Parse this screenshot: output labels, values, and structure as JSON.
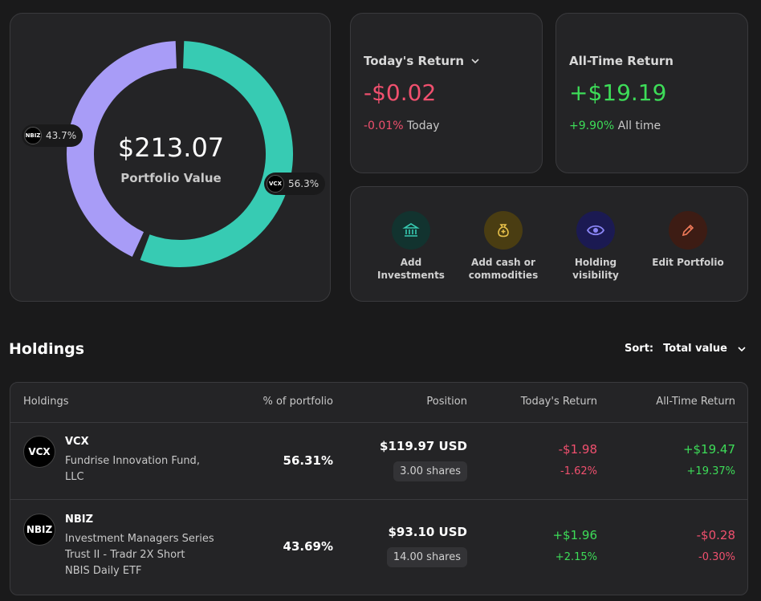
{
  "portfolio": {
    "value": "$213.07",
    "label": "Portfolio Value",
    "segments": [
      {
        "ticker": "VCX",
        "percent_label": "56.3%",
        "fraction": 0.563,
        "color": "#37cbb3"
      },
      {
        "ticker": "NBIZ",
        "percent_label": "43.7%",
        "fraction": 0.437,
        "color": "#a89cf7"
      }
    ]
  },
  "todays_return": {
    "title": "Today's Return",
    "value": "-$0.02",
    "pct": "-0.01%",
    "suffix": "Today"
  },
  "all_time_return": {
    "title": "All-Time Return",
    "value": "+$19.19",
    "pct": "+9.90%",
    "suffix": "All time"
  },
  "actions": [
    {
      "line1": "Add",
      "line2": "Investments",
      "icon": "bank-icon",
      "bg": "#12332f",
      "fg": "#37cbb3"
    },
    {
      "line1": "Add cash or",
      "line2": "commodities",
      "icon": "money-bag-icon",
      "bg": "#4a3d12",
      "fg": "#e8c14a"
    },
    {
      "line1": "Holding",
      "line2": "visibility",
      "icon": "eye-icon",
      "bg": "#1b1a52",
      "fg": "#8a85f5"
    },
    {
      "line1": "Edit Portfolio",
      "line2": "",
      "icon": "pencil-icon",
      "bg": "#3d1c14",
      "fg": "#f07a5a"
    }
  ],
  "holdings": {
    "title": "Holdings",
    "sort_label": "Sort:",
    "sort_value": "Total value",
    "columns": [
      "Holdings",
      "% of portfolio",
      "Position",
      "Today's Return",
      "All-Time Return"
    ],
    "rows": [
      {
        "ticker": "VCX",
        "name_lines": [
          "Fundrise Innovation Fund,",
          "LLC"
        ],
        "pct": "56.31%",
        "position": "$119.97 USD",
        "shares": "3.00 shares",
        "today_amt": "-$1.98",
        "today_pct": "-1.62%",
        "all_amt": "+$19.47",
        "all_pct": "+19.37%"
      },
      {
        "ticker": "NBIZ",
        "name_lines": [
          "Investment Managers Series",
          "Trust II - Tradr 2X Short",
          "NBIS Daily ETF"
        ],
        "pct": "43.69%",
        "position": "$93.10 USD",
        "shares": "14.00 shares",
        "today_amt": "+$1.96",
        "today_pct": "+2.15%",
        "all_amt": "-$0.28",
        "all_pct": "-0.30%"
      }
    ]
  }
}
